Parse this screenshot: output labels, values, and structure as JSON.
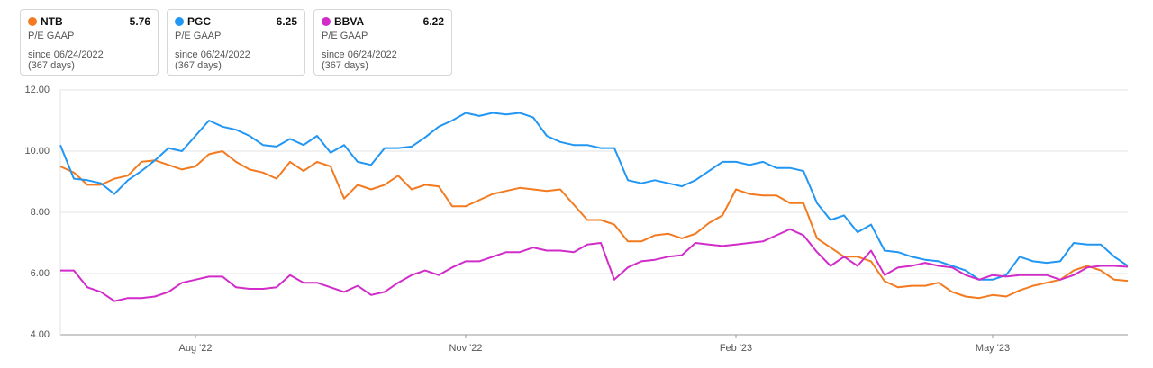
{
  "chart_data": {
    "type": "line",
    "categories": [
      null,
      null,
      null,
      null,
      null,
      null,
      null,
      null,
      null,
      null,
      "Aug '22",
      null,
      null,
      null,
      null,
      null,
      null,
      null,
      null,
      null,
      null,
      null,
      null,
      null,
      null,
      null,
      null,
      null,
      null,
      null,
      "Nov '22",
      null,
      null,
      null,
      null,
      null,
      null,
      null,
      null,
      null,
      null,
      null,
      null,
      null,
      null,
      null,
      null,
      null,
      null,
      null,
      "Feb '23",
      null,
      null,
      null,
      null,
      null,
      null,
      null,
      null,
      null,
      null,
      null,
      null,
      null,
      null,
      null,
      null,
      null,
      null,
      "May '23",
      null,
      null,
      null,
      null,
      null,
      null,
      null,
      null,
      null,
      null
    ],
    "ylim": [
      4,
      12
    ],
    "yticks": [
      {
        "value": 4,
        "label": "4.00"
      },
      {
        "value": 6,
        "label": "6.00"
      },
      {
        "value": 8,
        "label": "8.00"
      },
      {
        "value": 10,
        "label": "10.00"
      },
      {
        "value": 12,
        "label": "12.00"
      }
    ],
    "grid": true,
    "series": [
      {
        "name": "NTB",
        "color": "#f37a1f",
        "metric": "P/E GAAP",
        "since": "since 06/24/2022",
        "days": "(367 days)",
        "values": [
          9.5,
          9.3,
          8.9,
          8.9,
          9.1,
          9.2,
          9.65,
          9.7,
          9.55,
          9.4,
          9.5,
          9.9,
          10.0,
          9.65,
          9.4,
          9.3,
          9.1,
          9.65,
          9.35,
          9.65,
          9.5,
          8.45,
          8.9,
          8.75,
          8.9,
          9.2,
          8.75,
          8.9,
          8.85,
          8.2,
          8.2,
          8.4,
          8.6,
          8.7,
          8.8,
          8.75,
          8.7,
          8.75,
          8.25,
          7.75,
          7.75,
          7.6,
          7.05,
          7.05,
          7.25,
          7.3,
          7.15,
          7.3,
          7.65,
          7.9,
          8.75,
          8.6,
          8.55,
          8.55,
          8.3,
          8.3,
          7.15,
          6.85,
          6.55,
          6.55,
          6.4,
          5.75,
          5.55,
          5.6,
          5.6,
          5.7,
          5.4,
          5.25,
          5.2,
          5.3,
          5.25,
          5.45,
          5.6,
          5.7,
          5.8,
          6.1,
          6.25,
          6.1,
          5.8,
          5.76
        ]
      },
      {
        "name": "PGC",
        "color": "#2196f3",
        "metric": "P/E GAAP",
        "since": "since 06/24/2022",
        "days": "(367 days)",
        "values": [
          10.2,
          9.1,
          9.05,
          8.95,
          8.6,
          9.05,
          9.35,
          9.7,
          10.1,
          10.0,
          10.5,
          11.0,
          10.8,
          10.7,
          10.5,
          10.2,
          10.15,
          10.4,
          10.2,
          10.5,
          9.95,
          10.2,
          9.65,
          9.55,
          10.1,
          10.1,
          10.15,
          10.45,
          10.8,
          11.0,
          11.25,
          11.15,
          11.25,
          11.2,
          11.25,
          11.1,
          10.5,
          10.3,
          10.2,
          10.2,
          10.1,
          10.1,
          9.05,
          8.95,
          9.05,
          8.95,
          8.85,
          9.05,
          9.35,
          9.65,
          9.65,
          9.55,
          9.65,
          9.45,
          9.45,
          9.35,
          8.3,
          7.75,
          7.9,
          7.35,
          7.6,
          6.75,
          6.7,
          6.55,
          6.45,
          6.4,
          6.25,
          6.1,
          5.8,
          5.8,
          5.95,
          6.55,
          6.4,
          6.35,
          6.4,
          7.0,
          6.95,
          6.95,
          6.55,
          6.25
        ]
      },
      {
        "name": "BBVA",
        "color": "#d12cc9",
        "metric": "P/E GAAP",
        "since": "since 06/24/2022",
        "days": "(367 days)",
        "values": [
          6.1,
          6.1,
          5.55,
          5.4,
          5.1,
          5.2,
          5.2,
          5.25,
          5.4,
          5.7,
          5.8,
          5.9,
          5.9,
          5.55,
          5.5,
          5.5,
          5.55,
          5.95,
          5.7,
          5.7,
          5.55,
          5.4,
          5.6,
          5.3,
          5.4,
          5.7,
          5.95,
          6.1,
          5.95,
          6.2,
          6.4,
          6.4,
          6.55,
          6.7,
          6.7,
          6.85,
          6.75,
          6.75,
          6.7,
          6.95,
          7.0,
          5.8,
          6.2,
          6.4,
          6.45,
          6.55,
          6.6,
          7.0,
          6.95,
          6.9,
          6.95,
          7.0,
          7.05,
          7.25,
          7.45,
          7.25,
          6.7,
          6.25,
          6.55,
          6.25,
          6.75,
          5.95,
          6.2,
          6.25,
          6.35,
          6.25,
          6.2,
          5.95,
          5.8,
          5.95,
          5.9,
          5.95,
          5.95,
          5.95,
          5.8,
          5.95,
          6.2,
          6.25,
          6.25,
          6.22
        ]
      }
    ]
  }
}
